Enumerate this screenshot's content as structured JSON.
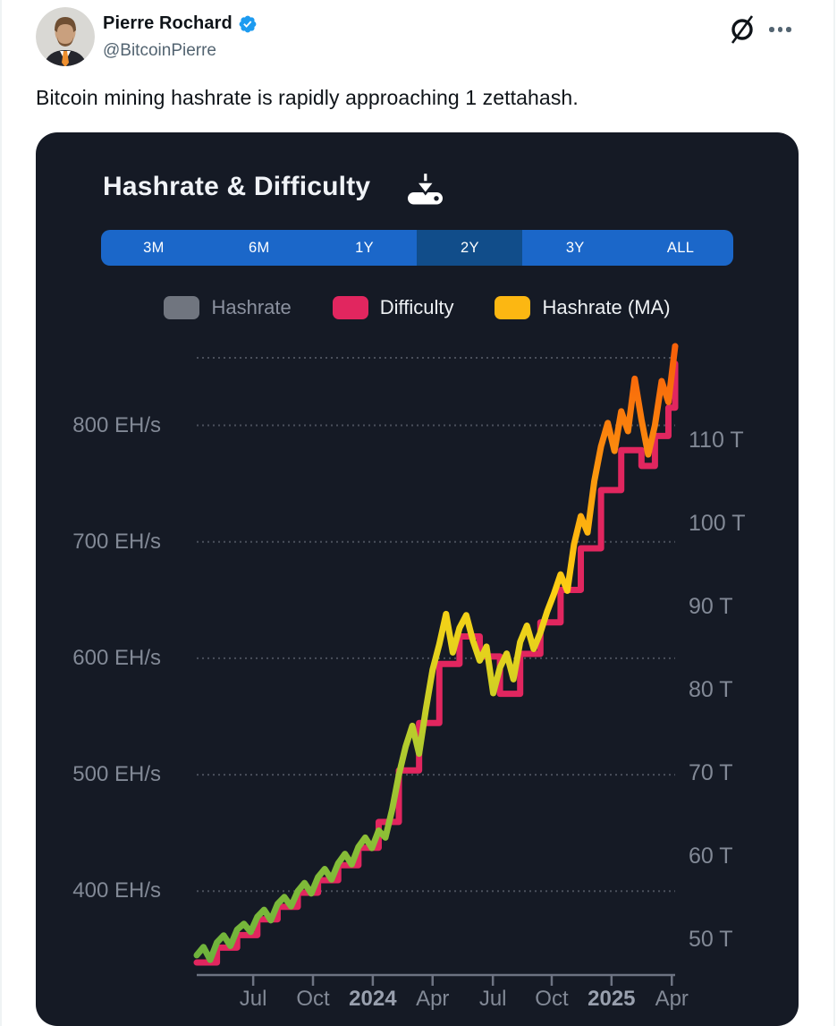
{
  "tweet": {
    "author": "Pierre Rochard",
    "handle": "@BitcoinPierre",
    "text": "Bitcoin mining hashrate is rapidly approaching 1 zettahash.",
    "verified_color": "#1d9bf0"
  },
  "icons": {
    "grok": "grok-slashed-circle",
    "more": "three-dots-menu",
    "verified": "blue-checkmark-seal",
    "download": "download-to-tray"
  },
  "card": {
    "bg": "#151a25",
    "title": "Hashrate & Difficulty",
    "time_ranges": {
      "options": [
        "3M",
        "6M",
        "1Y",
        "2Y",
        "3Y",
        "ALL"
      ],
      "selected": "2Y",
      "bar_color": "#1b67c9",
      "selected_color": "#114d8a"
    }
  },
  "chart_data": {
    "type": "line",
    "title": "Hashrate & Difficulty",
    "x_range": [
      "Apr 2023",
      "Apr 2025"
    ],
    "grid": "dotted-horizontal",
    "top_dotted_line": true,
    "legend": [
      {
        "label": "Hashrate",
        "color": "#70757f",
        "active": false
      },
      {
        "label": "Difficulty",
        "color": "#e1265f",
        "active": true
      },
      {
        "label": "Hashrate (MA)",
        "color": "#fcb712",
        "active": true
      }
    ],
    "left_axis": {
      "unit": "EH/s",
      "min": 328,
      "max": 858,
      "ticks": [
        {
          "value": 800,
          "label": "800 EH/s"
        },
        {
          "value": 700,
          "label": "700 EH/s"
        },
        {
          "value": 600,
          "label": "600 EH/s"
        },
        {
          "value": 500,
          "label": "500 EH/s"
        },
        {
          "value": 400,
          "label": "400 EH/s"
        }
      ]
    },
    "right_axis": {
      "unit": "T",
      "min": 45.7,
      "max": 119.9,
      "ticks": [
        {
          "value": 110,
          "label": "110 T"
        },
        {
          "value": 100,
          "label": "100 T"
        },
        {
          "value": 90,
          "label": "90 T"
        },
        {
          "value": 80,
          "label": "80 T"
        },
        {
          "value": 70,
          "label": "70 T"
        },
        {
          "value": 60,
          "label": "60 T"
        },
        {
          "value": 50,
          "label": "50 T"
        }
      ]
    },
    "x_ticks": [
      {
        "label": "Jul",
        "pos": 0.118,
        "bold": false
      },
      {
        "label": "Oct",
        "pos": 0.243,
        "bold": false
      },
      {
        "label": "2024",
        "pos": 0.368,
        "bold": true
      },
      {
        "label": "Apr",
        "pos": 0.493,
        "bold": false
      },
      {
        "label": "Jul",
        "pos": 0.619,
        "bold": false
      },
      {
        "label": "Oct",
        "pos": 0.742,
        "bold": false
      },
      {
        "label": "2025",
        "pos": 0.867,
        "bold": true
      },
      {
        "label": "Apr",
        "pos": 0.993,
        "bold": false
      }
    ],
    "series": [
      {
        "name": "Difficulty",
        "axis": "right",
        "style": "step",
        "color": "#e1265f",
        "values": [
          47.2,
          47.2,
          47.2,
          49.0,
          49.0,
          49.0,
          50.5,
          50.5,
          50.5,
          52.4,
          52.4,
          52.4,
          53.9,
          53.9,
          53.9,
          55.6,
          55.6,
          55.6,
          57.1,
          57.1,
          57.1,
          58.9,
          58.9,
          58.9,
          61.0,
          61.0,
          61.0,
          64.1,
          64.1,
          64.1,
          70.3,
          70.3,
          70.3,
          76.0,
          76.0,
          76.0,
          83.1,
          83.1,
          83.1,
          86.4,
          86.4,
          86.4,
          84.0,
          84.0,
          84.0,
          79.5,
          79.5,
          79.5,
          84.3,
          84.3,
          84.3,
          88.1,
          88.1,
          88.1,
          92.0,
          92.0,
          92.0,
          97.0,
          97.0,
          97.0,
          104.0,
          104.0,
          104.0,
          108.8,
          108.8,
          108.8,
          106.9,
          106.9,
          110.5,
          110.5,
          113.9,
          119.2
        ]
      },
      {
        "name": "Hashrate (MA)",
        "axis": "left",
        "style": "gradient-line",
        "gradient": [
          {
            "offset": 0.0,
            "color": "#6ab13d"
          },
          {
            "offset": 0.2,
            "color": "#86bd37"
          },
          {
            "offset": 0.38,
            "color": "#b5cc2d"
          },
          {
            "offset": 0.52,
            "color": "#e4d21d"
          },
          {
            "offset": 0.62,
            "color": "#fdd014"
          },
          {
            "offset": 0.72,
            "color": "#fdb30f"
          },
          {
            "offset": 0.84,
            "color": "#fb8d0e"
          },
          {
            "offset": 1.0,
            "color": "#f8620a"
          }
        ],
        "values": [
          345,
          352,
          341,
          356,
          362,
          353,
          367,
          372,
          365,
          378,
          384,
          375,
          389,
          395,
          387,
          400,
          407,
          398,
          412,
          419,
          410,
          424,
          432,
          423,
          438,
          446,
          437,
          452,
          446,
          470,
          500,
          524,
          542,
          518,
          556,
          590,
          612,
          638,
          605,
          626,
          637,
          615,
          598,
          610,
          570,
          592,
          604,
          582,
          614,
          628,
          608,
          622,
          640,
          655,
          672,
          658,
          698,
          722,
          708,
          752,
          782,
          802,
          778,
          812,
          795,
          840,
          805,
          775,
          800,
          838,
          820,
          868
        ]
      }
    ]
  }
}
